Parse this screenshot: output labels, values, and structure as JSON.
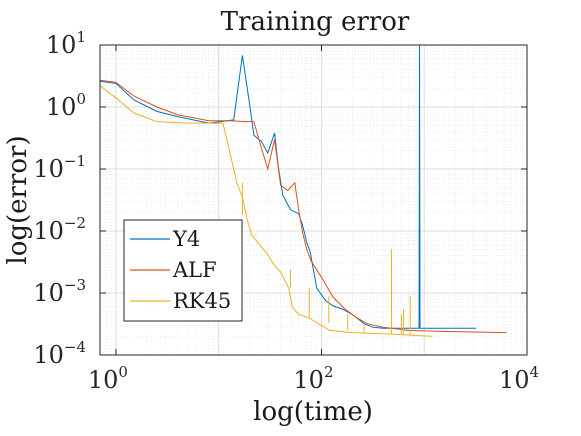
{
  "chart_data": {
    "type": "line",
    "title": "Training error",
    "xlabel": "log(time)",
    "ylabel": "log(error)",
    "xscale": "log",
    "yscale": "log",
    "xlim": [
      0.7,
      10000
    ],
    "ylim": [
      0.0001,
      10
    ],
    "grid": true,
    "legend_position": "bottom-left",
    "x_ticks": [
      {
        "base": "10",
        "exp": "0",
        "value": 1
      },
      {
        "base": "10",
        "exp": "2",
        "value": 100
      },
      {
        "base": "10",
        "exp": "4",
        "value": 10000
      }
    ],
    "y_ticks": [
      {
        "base": "10",
        "exp": "1",
        "value": 10
      },
      {
        "base": "10",
        "exp": "0",
        "value": 1
      },
      {
        "base": "10",
        "exp": "−1",
        "value": 0.1
      },
      {
        "base": "10",
        "exp": "−2",
        "value": 0.01
      },
      {
        "base": "10",
        "exp": "−3",
        "value": 0.001
      },
      {
        "base": "10",
        "exp": "−4",
        "value": 0.0001
      }
    ],
    "series": [
      {
        "name": "Y4",
        "color": "#0072bd",
        "points": [
          [
            0.7,
            2.6
          ],
          [
            1.0,
            2.4
          ],
          [
            1.5,
            1.3
          ],
          [
            2.5,
            0.85
          ],
          [
            4,
            0.7
          ],
          [
            8,
            0.55
          ],
          [
            14,
            0.62
          ],
          [
            17,
            6.8
          ],
          [
            20,
            1.1
          ],
          [
            22,
            0.35
          ],
          [
            26,
            0.28
          ],
          [
            30,
            0.18
          ],
          [
            35,
            0.38
          ],
          [
            38,
            0.11
          ],
          [
            42,
            0.038
          ],
          [
            50,
            0.022
          ],
          [
            60,
            0.019
          ],
          [
            65,
            0.013
          ],
          [
            72,
            0.0065
          ],
          [
            78,
            0.0045
          ],
          [
            82,
            0.0028
          ],
          [
            90,
            0.0012
          ],
          [
            110,
            0.00075
          ],
          [
            130,
            0.00062
          ],
          [
            160,
            0.00055
          ],
          [
            200,
            0.00045
          ],
          [
            260,
            0.00032
          ],
          [
            320,
            0.00028
          ],
          [
            400,
            0.00027
          ],
          [
            600,
            0.00027
          ],
          [
            890,
            0.00027
          ],
          [
            900,
            10.0
          ],
          [
            910,
            0.00027
          ],
          [
            1500,
            0.00027
          ],
          [
            3200,
            0.00027
          ]
        ]
      },
      {
        "name": "ALF",
        "color": "#d95319",
        "points": [
          [
            0.7,
            2.7
          ],
          [
            1.0,
            2.5
          ],
          [
            1.5,
            1.5
          ],
          [
            2.5,
            1.0
          ],
          [
            4,
            0.75
          ],
          [
            8,
            0.6
          ],
          [
            13,
            0.6
          ],
          [
            18,
            0.58
          ],
          [
            22,
            0.58
          ],
          [
            26,
            0.22
          ],
          [
            30,
            0.1
          ],
          [
            35,
            0.3
          ],
          [
            40,
            0.055
          ],
          [
            47,
            0.045
          ],
          [
            55,
            0.06
          ],
          [
            60,
            0.022
          ],
          [
            66,
            0.009
          ],
          [
            72,
            0.005
          ],
          [
            80,
            0.0032
          ],
          [
            100,
            0.0018
          ],
          [
            130,
            0.00085
          ],
          [
            170,
            0.00055
          ],
          [
            220,
            0.0004
          ],
          [
            280,
            0.00032
          ],
          [
            400,
            0.00028
          ],
          [
            700,
            0.00025
          ],
          [
            1500,
            0.00024
          ],
          [
            6300,
            0.00023
          ]
        ]
      },
      {
        "name": "RK45",
        "color": "#edb120",
        "points": [
          [
            0.7,
            2.2
          ],
          [
            1.0,
            1.4
          ],
          [
            1.5,
            0.8
          ],
          [
            2.5,
            0.58
          ],
          [
            5,
            0.55
          ],
          [
            11,
            0.55
          ],
          [
            13,
            0.17
          ],
          [
            15,
            0.06
          ],
          [
            17,
            0.035
          ],
          [
            19,
            0.015
          ],
          [
            21,
            0.0085
          ],
          [
            25,
            0.006
          ],
          [
            28,
            0.0048
          ],
          [
            30,
            0.0042
          ],
          [
            33,
            0.0032
          ],
          [
            36,
            0.0026
          ],
          [
            40,
            0.0022
          ],
          [
            48,
            0.0012
          ],
          [
            52,
            0.0006
          ],
          [
            60,
            0.00045
          ],
          [
            75,
            0.0004
          ],
          [
            90,
            0.00033
          ],
          [
            120,
            0.00025
          ],
          [
            200,
            0.00023
          ],
          [
            400,
            0.00022
          ],
          [
            700,
            0.00021
          ],
          [
            1200,
            0.0002
          ]
        ],
        "spikes": [
          [
            17,
            0.018
          ],
          [
            23,
            0.009
          ],
          [
            50,
            0.0024
          ],
          [
            76,
            0.0012
          ],
          [
            118,
            0.00088
          ],
          [
            180,
            0.00045
          ],
          [
            260,
            0.0003
          ],
          [
            480,
            0.0051
          ],
          [
            600,
            0.00045
          ],
          [
            630,
            0.00055
          ],
          [
            730,
            0.0009
          ]
        ]
      }
    ]
  }
}
